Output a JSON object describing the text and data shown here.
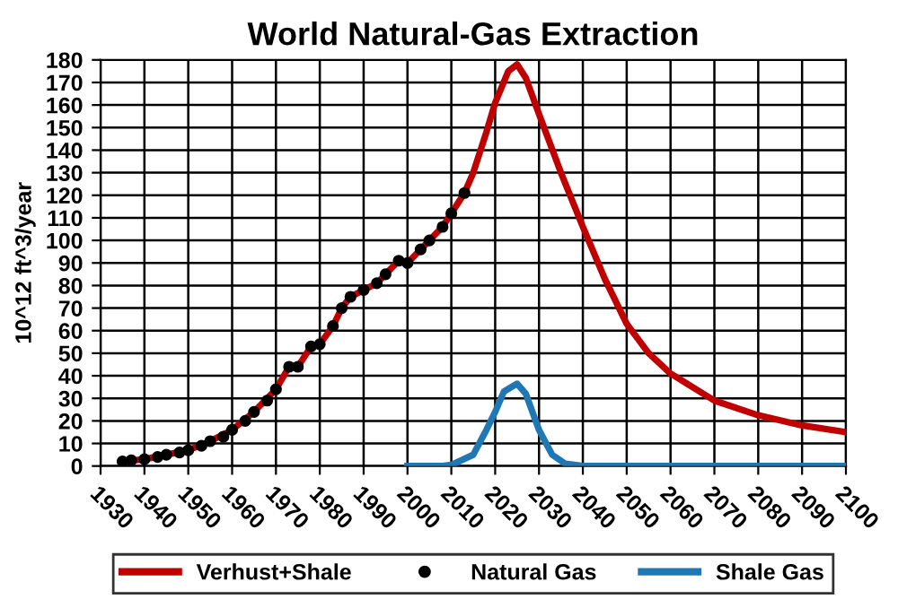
{
  "chart_data": {
    "type": "line",
    "title": "World Natural-Gas Extraction",
    "ylabel": "10^12 ft^3/year",
    "series": [
      {
        "name": "Verhust+Shale",
        "color": "#c00000",
        "x": [
          1935,
          1940,
          1945,
          1950,
          1955,
          1960,
          1965,
          1970,
          1973,
          1975,
          1978,
          1980,
          1983,
          1985,
          1987,
          1990,
          1993,
          1995,
          1998,
          2000,
          2003,
          2005,
          2008,
          2010,
          2013,
          2015,
          2018,
          2020,
          2023,
          2025,
          2027,
          2030,
          2035,
          2040,
          2045,
          2050,
          2055,
          2060,
          2070,
          2080,
          2090,
          2100
        ],
        "values": [
          2,
          3,
          5,
          7,
          11,
          16,
          24,
          34,
          44,
          44,
          53,
          54,
          62,
          70,
          75,
          78,
          81,
          85,
          91,
          90,
          96,
          100,
          106,
          112,
          121,
          130,
          148,
          161,
          175,
          178,
          172,
          156,
          130,
          106,
          83,
          63,
          50,
          41,
          29,
          22.5,
          18,
          15
        ]
      },
      {
        "name": "Natural Gas",
        "color": "#000000",
        "type": "scatter",
        "marker": "circle",
        "x": [
          1935,
          1937,
          1940,
          1943,
          1945,
          1948,
          1950,
          1953,
          1955,
          1958,
          1960,
          1963,
          1965,
          1968,
          1970,
          1973,
          1975,
          1978,
          1980,
          1983,
          1985,
          1987,
          1990,
          1993,
          1995,
          1998,
          2000,
          2003,
          2005,
          2008,
          2010,
          2013
        ],
        "values": [
          2,
          2.5,
          3,
          4,
          5,
          6,
          7,
          9,
          11,
          13,
          16,
          20,
          24,
          29,
          34,
          44,
          44,
          53,
          54,
          62,
          70,
          75,
          78,
          81,
          85,
          91,
          90,
          96,
          100,
          106,
          112,
          121
        ]
      },
      {
        "name": "Shale Gas",
        "color": "#1f77b4",
        "x": [
          2000,
          2005,
          2008,
          2010,
          2015,
          2018,
          2020,
          2022,
          2025,
          2027,
          2030,
          2033,
          2036,
          2040,
          2050,
          2100
        ],
        "values": [
          0,
          0,
          0,
          0.5,
          5,
          16,
          24,
          33,
          36.5,
          32,
          16,
          5,
          1,
          0,
          0,
          0
        ]
      }
    ],
    "xlim": [
      1930,
      2100
    ],
    "xticks": [
      1930,
      1940,
      1950,
      1960,
      1970,
      1980,
      1990,
      2000,
      2010,
      2020,
      2030,
      2040,
      2050,
      2060,
      2070,
      2080,
      2090,
      2100
    ],
    "ylim": [
      0,
      180
    ],
    "yticks": [
      0,
      10,
      20,
      30,
      40,
      50,
      60,
      70,
      80,
      90,
      100,
      110,
      120,
      130,
      140,
      150,
      160,
      170,
      180
    ],
    "grid": true,
    "legend": "bottom",
    "line_style": "solid"
  }
}
